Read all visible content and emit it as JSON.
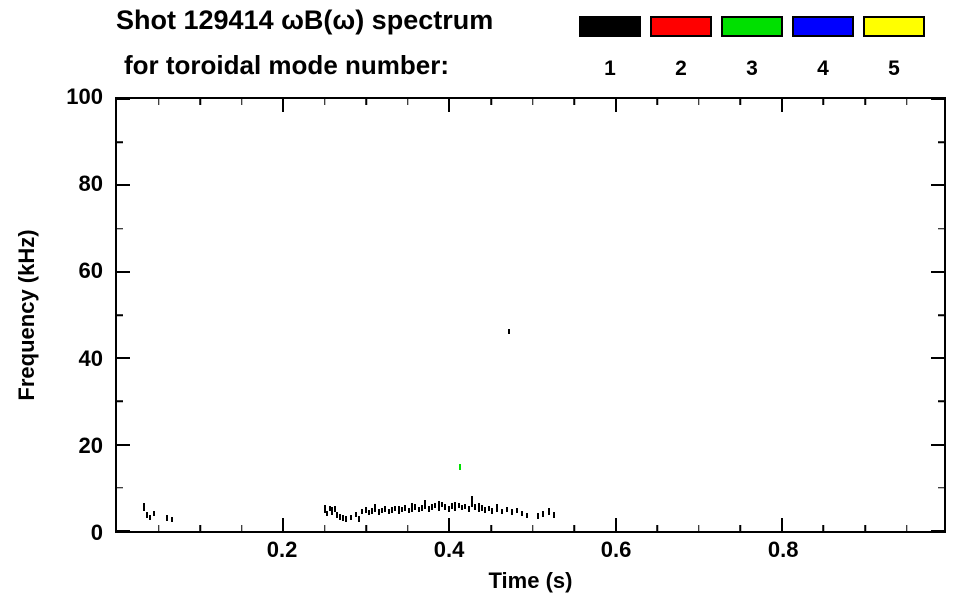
{
  "chart_data": {
    "type": "scatter",
    "title": "Shot 129414 ωB(ω) spectrum",
    "subtitle": "for toroidal mode number:",
    "xlabel": "Time (s)",
    "ylabel": "Frequency (kHz)",
    "xlim": [
      0,
      0.995
    ],
    "ylim": [
      0,
      100
    ],
    "xticks": [
      0.2,
      0.4,
      0.6,
      0.8
    ],
    "xtick_labels": [
      "0.2",
      "0.4",
      "0.6",
      "0.8"
    ],
    "x_minor_step": 0.05,
    "yticks": [
      0,
      20,
      40,
      60,
      80,
      100
    ],
    "ytick_labels": [
      "0",
      "20",
      "40",
      "60",
      "80",
      "100"
    ],
    "y_minor_step": 10,
    "grid": false,
    "legend_position": "top-right",
    "legend": [
      {
        "label": "1",
        "color": "#000000"
      },
      {
        "label": "2",
        "color": "#ff0000"
      },
      {
        "label": "3",
        "color": "#00e000"
      },
      {
        "label": "4",
        "color": "#0000ff"
      },
      {
        "label": "5",
        "color": "#ffff00"
      }
    ],
    "series": [
      {
        "name": "toroidal mode n=1",
        "color": "#000000",
        "points": [
          [
            0.033,
            4.6,
            1.8
          ],
          [
            0.036,
            3.0
          ],
          [
            0.04,
            2.5
          ],
          [
            0.044,
            3.4
          ],
          [
            0.06,
            2.3
          ],
          [
            0.066,
            2.0
          ],
          [
            0.25,
            4.2,
            1.8
          ],
          [
            0.253,
            3.4
          ],
          [
            0.256,
            4.6
          ],
          [
            0.259,
            3.8,
            1.8
          ],
          [
            0.262,
            4.4
          ],
          [
            0.265,
            3.0
          ],
          [
            0.268,
            2.6
          ],
          [
            0.272,
            2.3
          ],
          [
            0.276,
            2.1
          ],
          [
            0.281,
            2.5
          ],
          [
            0.287,
            3.2
          ],
          [
            0.291,
            2.2
          ],
          [
            0.295,
            3.9
          ],
          [
            0.299,
            4.2
          ],
          [
            0.303,
            3.6
          ],
          [
            0.307,
            4.0
          ],
          [
            0.311,
            4.4,
            1.8
          ],
          [
            0.315,
            3.8
          ],
          [
            0.319,
            4.1
          ],
          [
            0.323,
            4.5
          ],
          [
            0.327,
            3.9
          ],
          [
            0.331,
            4.2
          ],
          [
            0.335,
            4.6
          ],
          [
            0.339,
            4.0,
            1.8
          ],
          [
            0.343,
            4.3
          ],
          [
            0.347,
            4.7
          ],
          [
            0.351,
            4.1
          ],
          [
            0.355,
            4.5,
            2.0
          ],
          [
            0.359,
            4.9
          ],
          [
            0.363,
            4.3
          ],
          [
            0.367,
            4.7
          ],
          [
            0.371,
            5.1,
            2.0
          ],
          [
            0.375,
            4.5
          ],
          [
            0.379,
            4.9
          ],
          [
            0.383,
            5.3
          ],
          [
            0.387,
            4.7,
            2.2
          ],
          [
            0.391,
            5.5
          ],
          [
            0.395,
            4.9
          ],
          [
            0.399,
            4.5
          ],
          [
            0.403,
            5.1
          ],
          [
            0.407,
            4.7,
            2.0
          ],
          [
            0.411,
            5.3
          ],
          [
            0.415,
            4.8
          ],
          [
            0.419,
            5.0
          ],
          [
            0.423,
            4.5
          ],
          [
            0.427,
            5.6,
            2.6
          ],
          [
            0.431,
            4.9
          ],
          [
            0.435,
            4.4,
            2.0
          ],
          [
            0.439,
            4.7
          ],
          [
            0.443,
            4.2
          ],
          [
            0.447,
            4.6
          ],
          [
            0.451,
            4.0
          ],
          [
            0.457,
            4.4,
            1.8
          ],
          [
            0.463,
            3.9
          ],
          [
            0.469,
            4.3
          ],
          [
            0.475,
            3.7
          ],
          [
            0.481,
            4.1
          ],
          [
            0.487,
            3.4
          ],
          [
            0.493,
            2.9
          ],
          [
            0.506,
            2.8
          ],
          [
            0.512,
            3.3
          ],
          [
            0.52,
            3.6,
            1.8
          ],
          [
            0.526,
            3.0
          ],
          [
            0.472,
            45.5
          ]
        ]
      },
      {
        "name": "toroidal mode n=3",
        "color": "#00e000",
        "points": [
          [
            0.413,
            14.2
          ]
        ]
      }
    ]
  }
}
